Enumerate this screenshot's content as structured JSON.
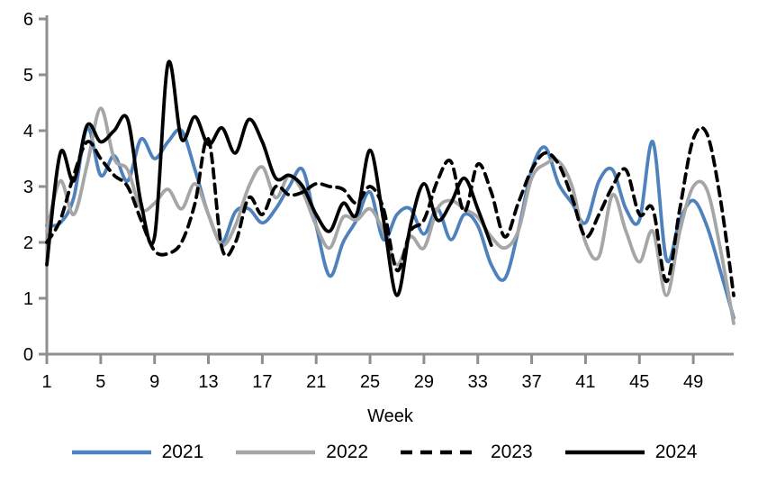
{
  "figure": {
    "background_color": "#ffffff",
    "axis_color": "#8f8f8f",
    "text_color": "#000000"
  },
  "chart_data": {
    "type": "line",
    "title": "",
    "xlabel": "Week",
    "ylabel": "",
    "xlim": [
      1,
      52
    ],
    "ylim": [
      0,
      6
    ],
    "grid": false,
    "legend_position": "bottom",
    "x_unit": "week_number",
    "x_ticks": [
      1,
      5,
      9,
      13,
      17,
      21,
      25,
      29,
      33,
      37,
      41,
      45,
      49
    ],
    "y_ticks": [
      0,
      1,
      2,
      3,
      4,
      5,
      6
    ],
    "series": [
      {
        "name": "2021",
        "color": "#4F81BD",
        "line_style": "solid",
        "start_week": 1,
        "values": [
          2.3,
          2.35,
          2.8,
          4.05,
          3.2,
          3.55,
          3.1,
          3.85,
          3.5,
          3.8,
          4.0,
          3.3,
          2.5,
          2.0,
          2.55,
          2.6,
          2.35,
          2.6,
          3.0,
          3.3,
          2.3,
          1.4,
          2.0,
          2.4,
          2.9,
          2.05,
          2.5,
          2.6,
          2.15,
          2.6,
          2.05,
          2.5,
          2.3,
          1.6,
          1.35,
          2.2,
          3.3,
          3.7,
          3.05,
          2.7,
          2.35,
          3.1,
          3.3,
          2.6,
          2.4,
          3.8,
          1.7,
          2.4,
          2.75,
          2.3,
          1.5,
          0.65
        ]
      },
      {
        "name": "2022",
        "color": "#A6A6A6",
        "line_style": "solid",
        "start_week": 1,
        "values": [
          2.2,
          3.1,
          2.5,
          3.4,
          4.4,
          3.5,
          3.3,
          2.6,
          2.7,
          2.95,
          2.6,
          3.05,
          2.5,
          1.95,
          2.3,
          3.0,
          3.35,
          2.8,
          3.2,
          2.9,
          2.3,
          1.9,
          2.45,
          2.4,
          2.6,
          2.2,
          1.6,
          2.1,
          1.9,
          2.6,
          2.75,
          2.6,
          2.45,
          2.1,
          1.9,
          2.2,
          3.15,
          3.4,
          3.45,
          3.0,
          2.0,
          1.75,
          2.85,
          2.2,
          1.65,
          2.2,
          1.05,
          2.2,
          3.0,
          2.95,
          1.9,
          0.55
        ]
      },
      {
        "name": "2023",
        "color": "#000000",
        "line_style": "dashed",
        "start_week": 1,
        "values": [
          2.0,
          2.4,
          3.2,
          3.8,
          3.5,
          3.2,
          3.0,
          2.4,
          1.85,
          1.8,
          2.0,
          2.7,
          3.85,
          1.9,
          2.0,
          2.8,
          2.5,
          3.0,
          2.85,
          2.9,
          3.05,
          3.0,
          2.95,
          2.7,
          3.0,
          2.6,
          1.5,
          2.2,
          2.4,
          3.1,
          3.45,
          2.55,
          3.4,
          2.9,
          2.1,
          2.7,
          3.3,
          3.6,
          3.4,
          2.8,
          2.1,
          2.5,
          3.0,
          3.3,
          2.5,
          2.6,
          1.3,
          2.6,
          3.85,
          3.95,
          2.8,
          1.05
        ]
      },
      {
        "name": "2024",
        "color": "#000000",
        "line_style": "solid",
        "start_week": 1,
        "values": [
          1.6,
          3.6,
          3.1,
          4.1,
          3.8,
          4.0,
          4.2,
          2.7,
          2.1,
          5.2,
          3.85,
          4.25,
          3.75,
          4.05,
          3.6,
          4.2,
          3.8,
          3.15,
          3.2,
          3.0,
          2.5,
          2.2,
          2.7,
          2.5,
          3.65,
          2.4,
          1.05,
          2.3,
          3.05,
          2.4,
          2.7,
          3.15,
          2.6,
          1.95
        ]
      }
    ]
  }
}
